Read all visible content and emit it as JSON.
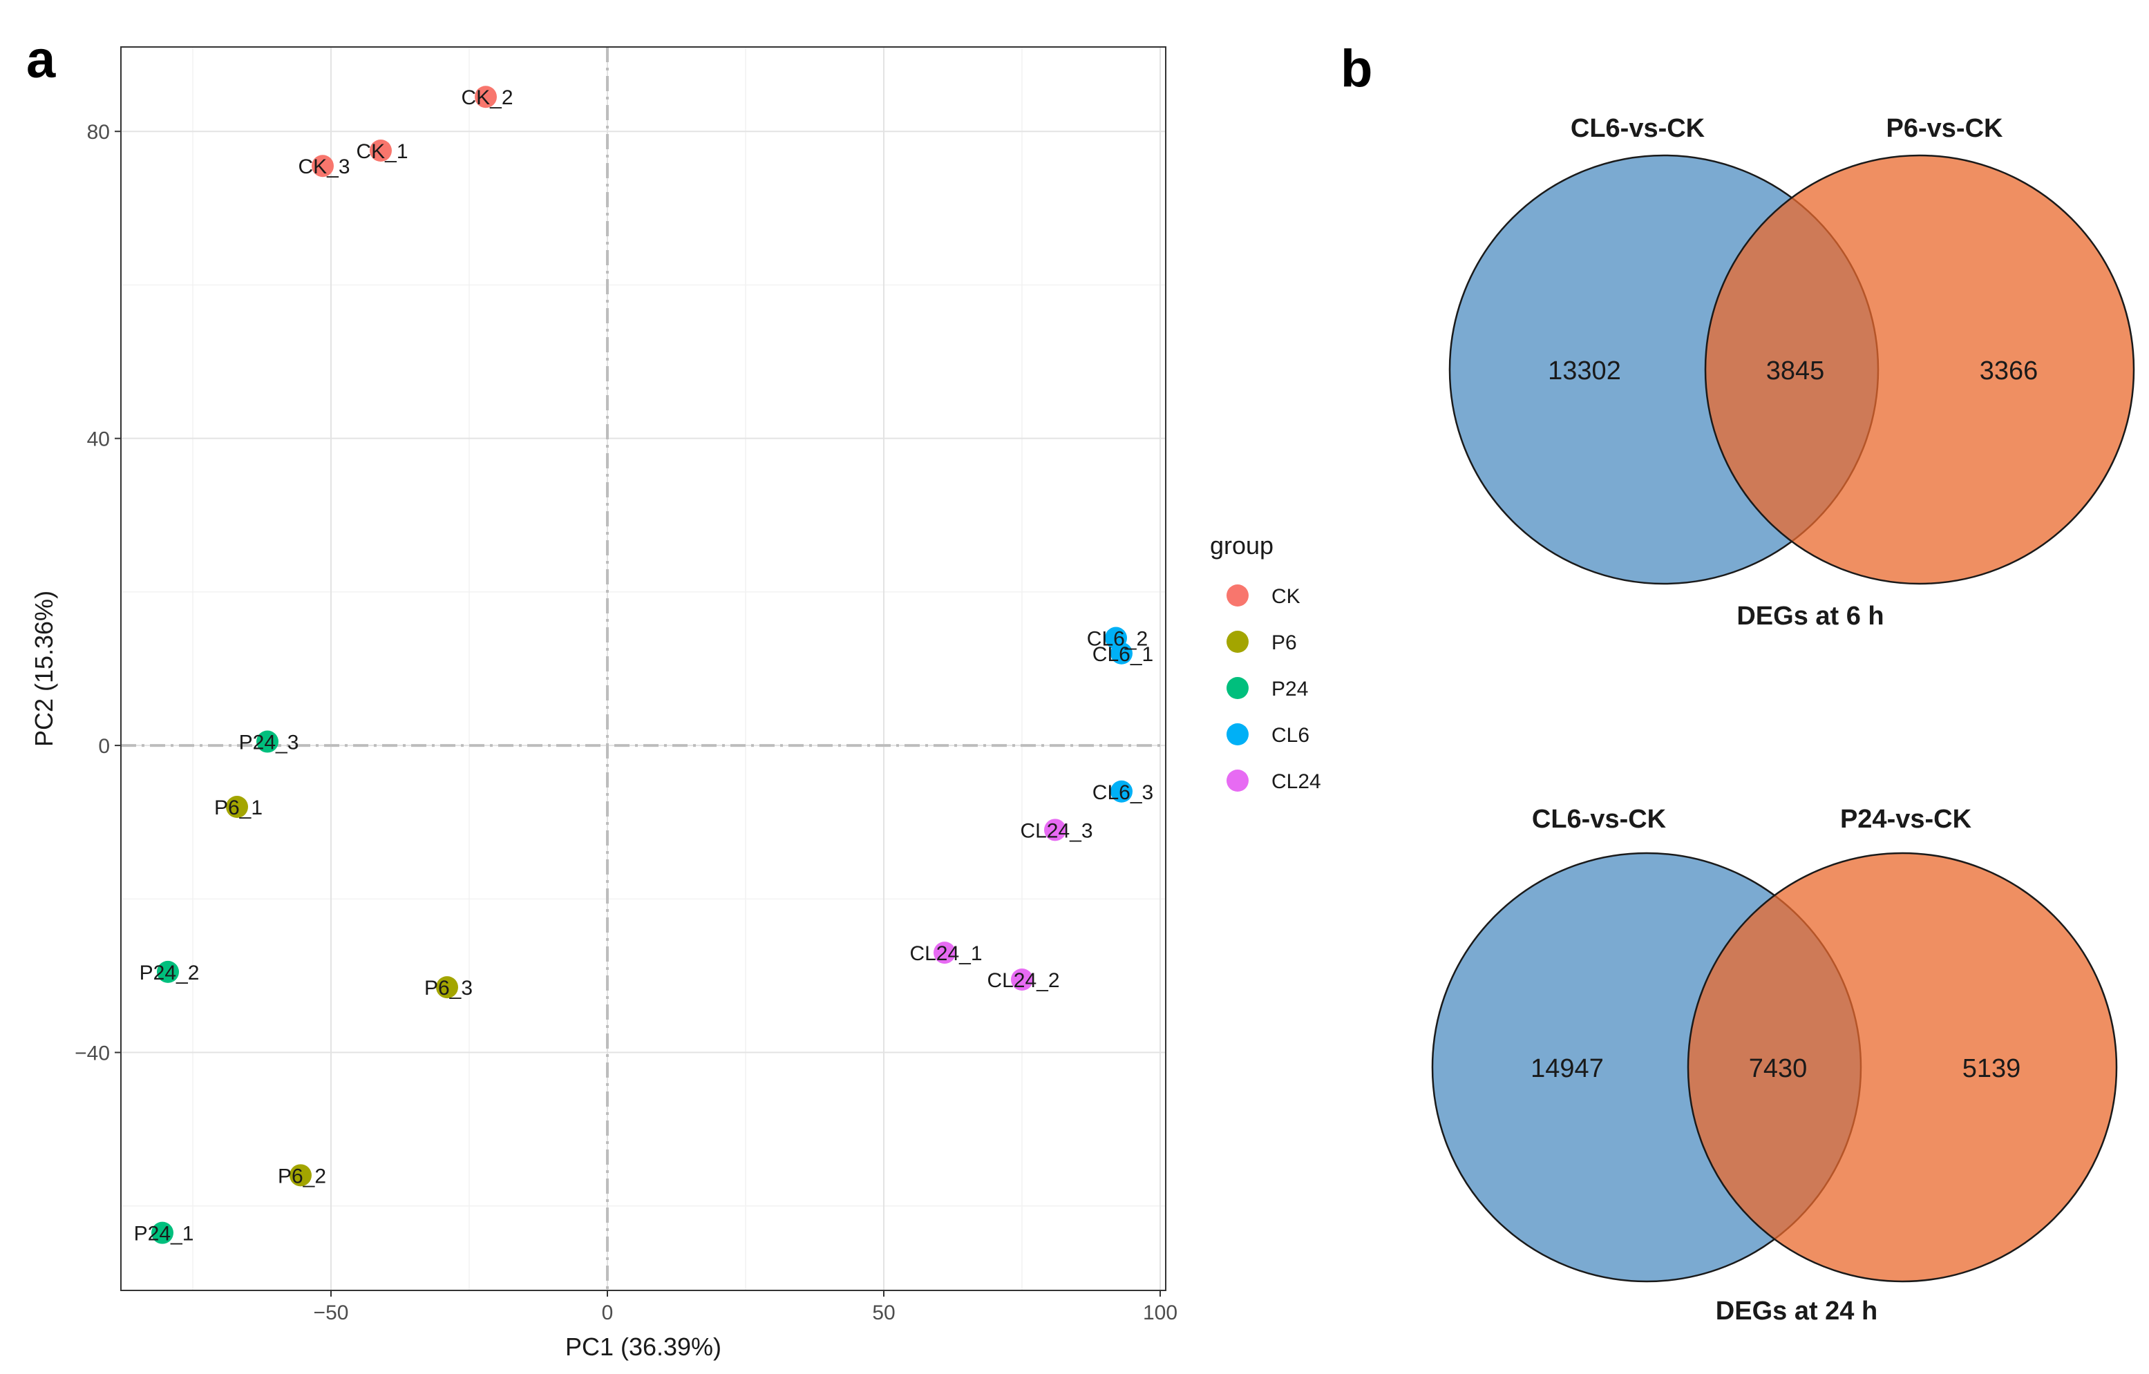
{
  "panels": {
    "a_label": "a",
    "b_label": "b"
  },
  "chart_data": [
    {
      "type": "scatter",
      "title": "",
      "xlabel": "PC1 (36.39%)",
      "ylabel": "PC2 (15.36%)",
      "xlim": [
        -88,
        101
      ],
      "ylim": [
        -71,
        91
      ],
      "x_ticks": [
        -50,
        0,
        50,
        100
      ],
      "x_tick_labels": [
        "−50",
        "0",
        "50",
        "100"
      ],
      "y_ticks": [
        -40,
        0,
        40,
        80
      ],
      "y_tick_labels": [
        "−40",
        "0",
        "40",
        "80"
      ],
      "grid": true,
      "reference_lines": {
        "x": 0,
        "y": 0
      },
      "legend": {
        "title": "group",
        "position": "right",
        "entries": [
          {
            "name": "CK",
            "color": "#F8766D"
          },
          {
            "name": "P6",
            "color": "#A3A500"
          },
          {
            "name": "P24",
            "color": "#00BF7D"
          },
          {
            "name": "CL6",
            "color": "#00B0F6"
          },
          {
            "name": "CL24",
            "color": "#E76BF3"
          }
        ]
      },
      "points": [
        {
          "label": "CK_1",
          "group": "CK",
          "x": -41,
          "y": 77.5
        },
        {
          "label": "CK_2",
          "group": "CK",
          "x": -22,
          "y": 84.5
        },
        {
          "label": "CK_3",
          "group": "CK",
          "x": -51.5,
          "y": 75.5
        },
        {
          "label": "P6_1",
          "group": "P6",
          "x": -67,
          "y": -8
        },
        {
          "label": "P6_2",
          "group": "P6",
          "x": -55.5,
          "y": -56
        },
        {
          "label": "P6_3",
          "group": "P6",
          "x": -29,
          "y": -31.5
        },
        {
          "label": "P24_1",
          "group": "P24",
          "x": -80.5,
          "y": -63.5
        },
        {
          "label": "P24_2",
          "group": "P24",
          "x": -79.5,
          "y": -29.5
        },
        {
          "label": "P24_3",
          "group": "P24",
          "x": -61.5,
          "y": 0.5
        },
        {
          "label": "CL6_1",
          "group": "CL6",
          "x": 93,
          "y": 12
        },
        {
          "label": "CL6_2",
          "group": "CL6",
          "x": 92,
          "y": 14
        },
        {
          "label": "CL6_3",
          "group": "CL6",
          "x": 93,
          "y": -6
        },
        {
          "label": "CL24_1",
          "group": "CL24",
          "x": 61,
          "y": -27
        },
        {
          "label": "CL24_2",
          "group": "CL24",
          "x": 75,
          "y": -30.5
        },
        {
          "label": "CL24_3",
          "group": "CL24",
          "x": 81,
          "y": -11
        }
      ]
    },
    {
      "type": "venn",
      "title": "DEGs at 6 h",
      "sets": [
        {
          "name": "CL6-vs-CK",
          "color": "#4F8EC2"
        },
        {
          "name": "P6-vs-CK",
          "color": "#E9692D"
        }
      ],
      "counts": {
        "left_only": "13302",
        "overlap": "3845",
        "right_only": "3366"
      }
    },
    {
      "type": "venn",
      "title": "DEGs at 24 h",
      "sets": [
        {
          "name": "CL6-vs-CK",
          "color": "#4F8EC2"
        },
        {
          "name": "P24-vs-CK",
          "color": "#E9692D"
        }
      ],
      "counts": {
        "left_only": "14947",
        "overlap": "7430",
        "right_only": "5139"
      }
    }
  ]
}
